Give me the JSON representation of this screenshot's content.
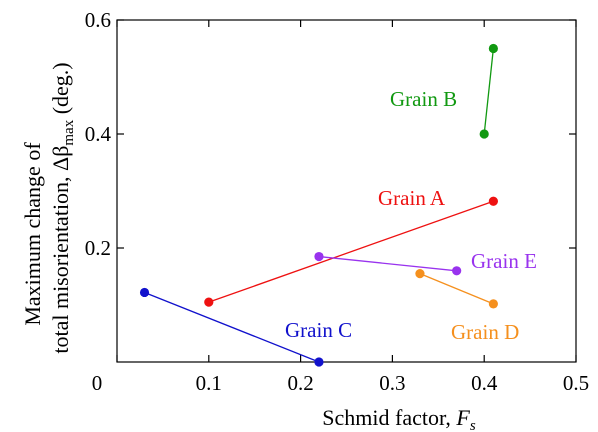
{
  "chart_data": {
    "type": "line",
    "xlabel": "Schmid factor, ",
    "xlabel_var": "F",
    "xlabel_sub": "s",
    "ylabel_line1": "Maximum change of",
    "ylabel_line2": "total misorientation, Δβ",
    "ylabel_sub": "max",
    "ylabel_tail": " (deg.)",
    "xlim": [
      0,
      0.5
    ],
    "ylim": [
      0,
      0.6
    ],
    "x_ticks": [
      0,
      0.1,
      0.2,
      0.3,
      0.4,
      0.5
    ],
    "x_tick_labels": [
      "0",
      "0.1",
      "0.2",
      "0.3",
      "0.4",
      "0.5"
    ],
    "y_ticks": [
      0.2,
      0.4,
      0.6
    ],
    "y_tick_labels": [
      "0.2",
      "0.4",
      "0.6"
    ],
    "grid": false,
    "series": [
      {
        "name": "Grain A",
        "color": "#ee1111",
        "x": [
          0.1,
          0.41
        ],
        "y": [
          0.105,
          0.282
        ]
      },
      {
        "name": "Grain B",
        "color": "#119911",
        "x": [
          0.4,
          0.41
        ],
        "y": [
          0.4,
          0.55
        ]
      },
      {
        "name": "Grain C",
        "color": "#1111cc",
        "x": [
          0.03,
          0.22
        ],
        "y": [
          0.122,
          0.0
        ]
      },
      {
        "name": "Grain D",
        "color": "#f5901e",
        "x": [
          0.33,
          0.41
        ],
        "y": [
          0.155,
          0.102
        ]
      },
      {
        "name": "Grain E",
        "color": "#9933ee",
        "x": [
          0.22,
          0.37
        ],
        "y": [
          0.185,
          0.16
        ]
      }
    ]
  }
}
